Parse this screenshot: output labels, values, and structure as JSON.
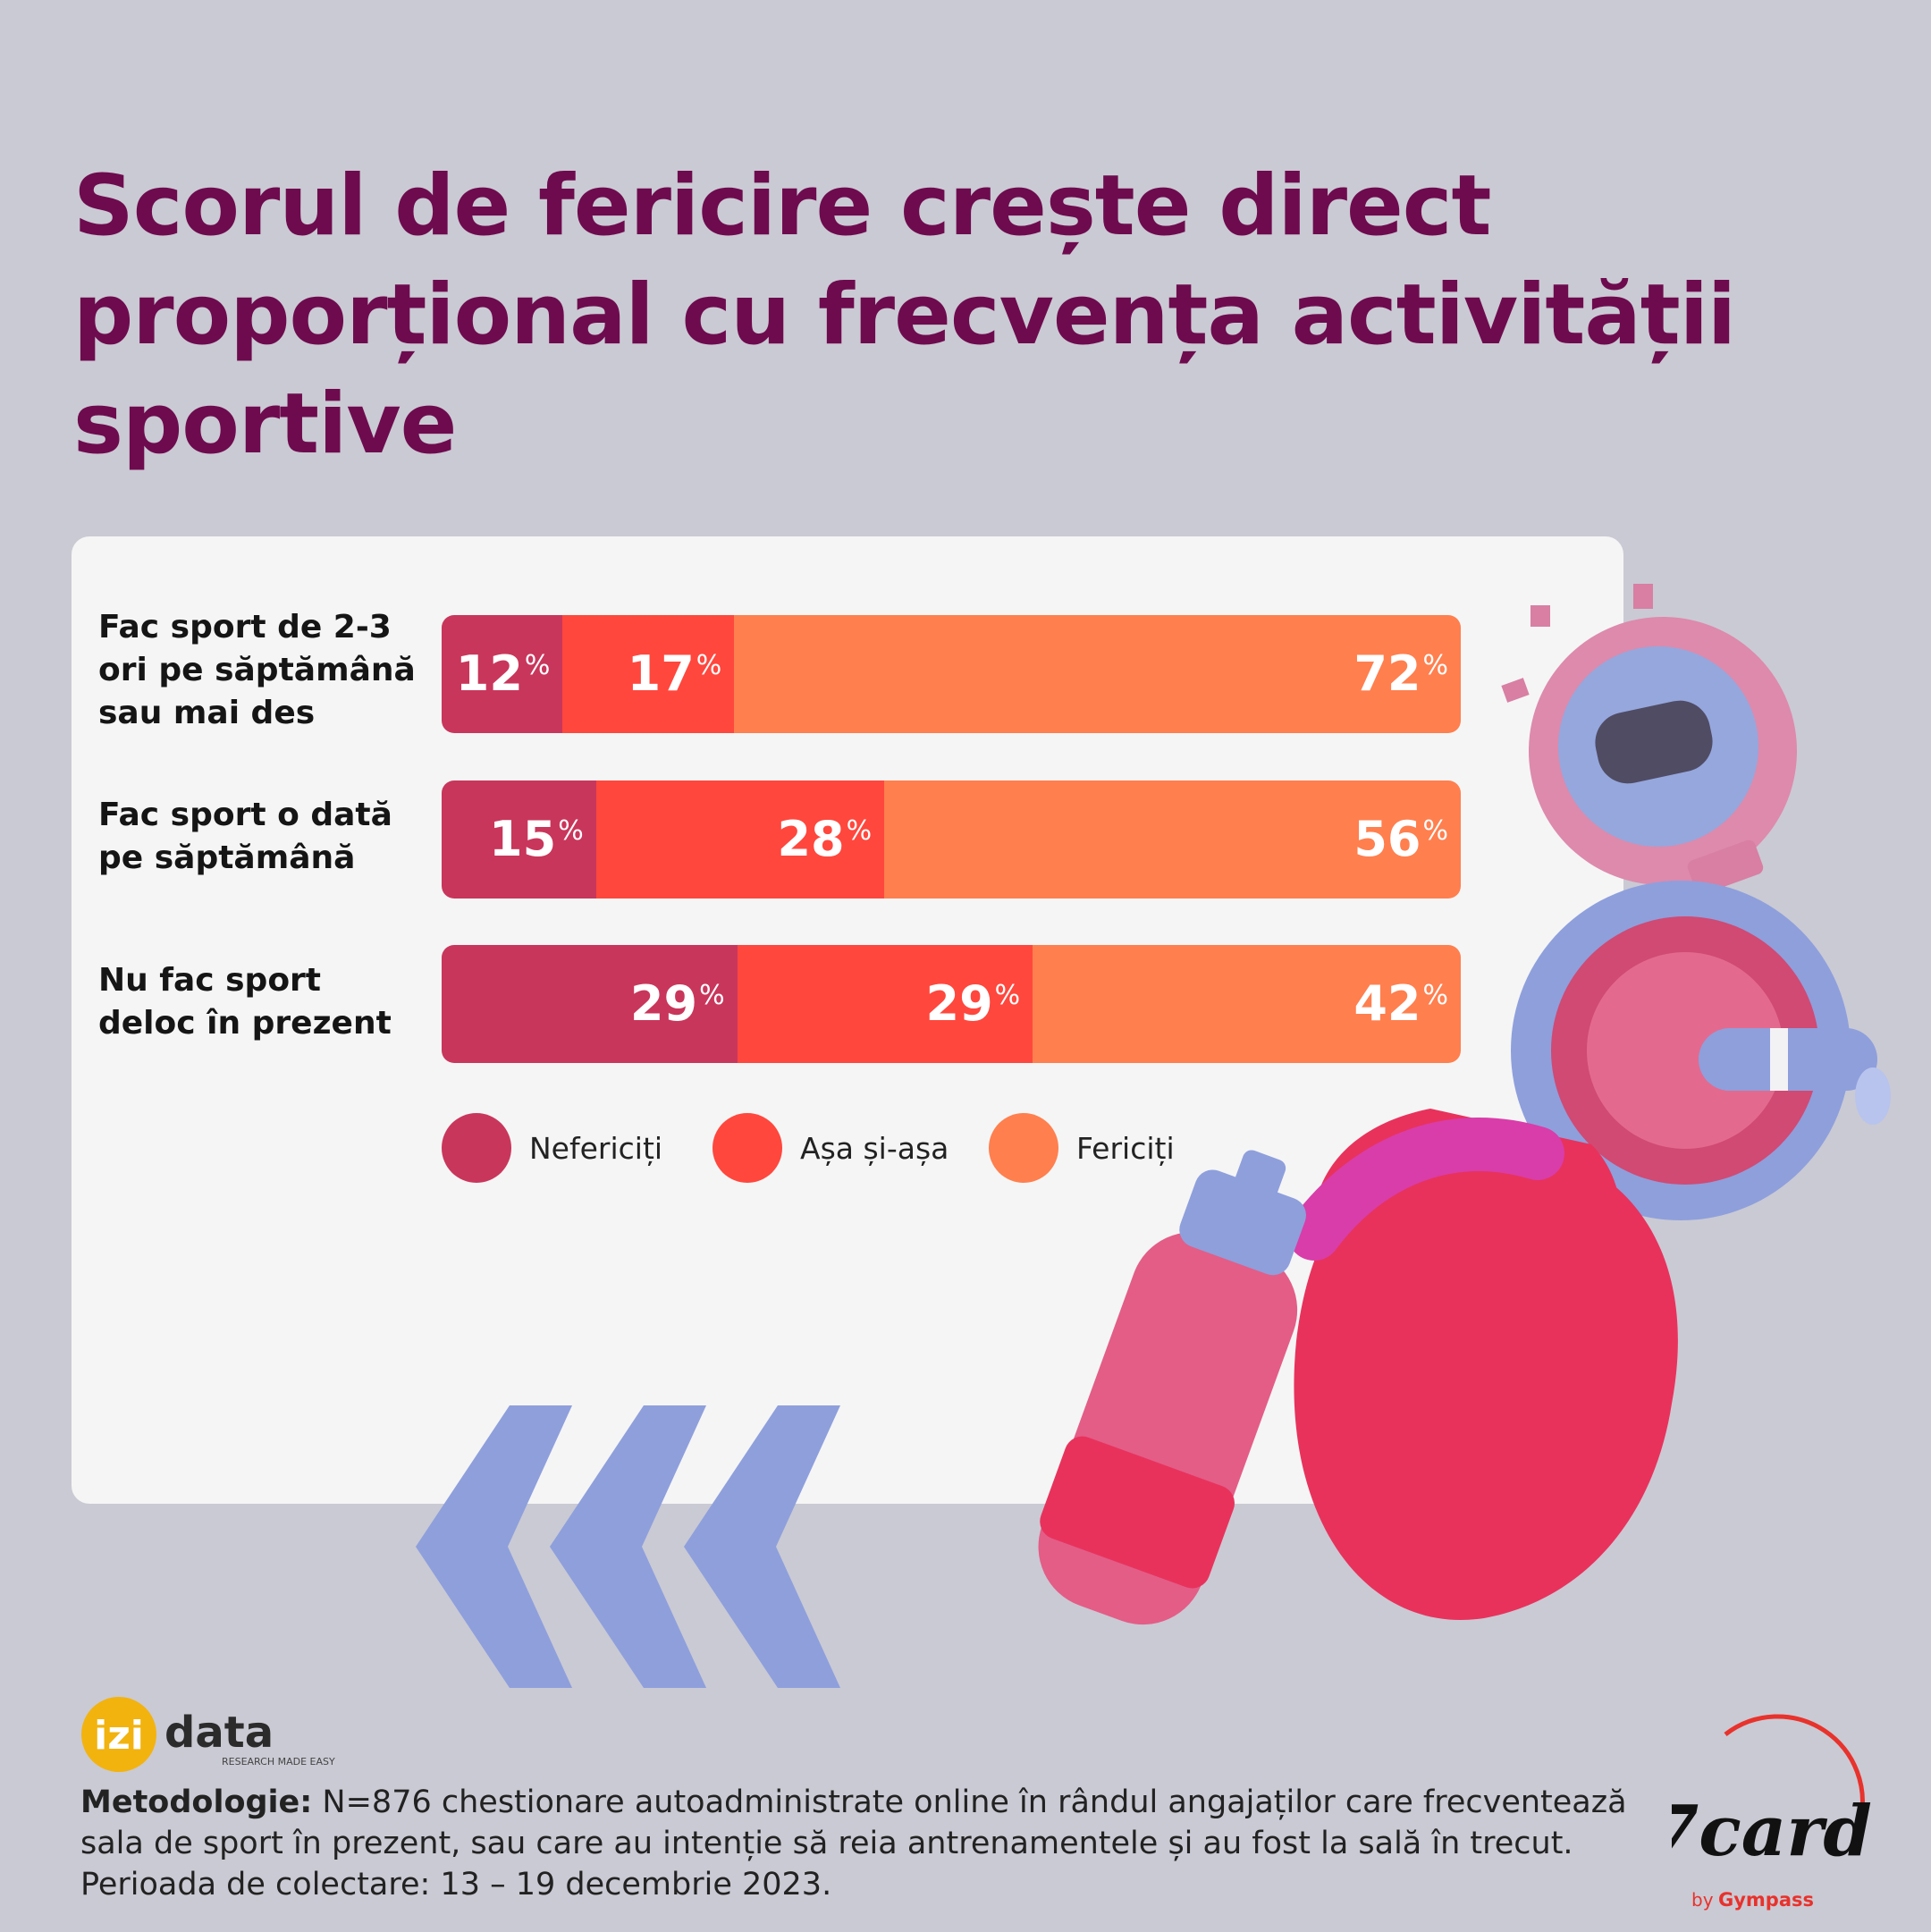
{
  "title_lines": [
    "Scorul de fericire crește direct",
    "proporțional cu frecvența activității",
    "sportive"
  ],
  "colors": {
    "nefericiti": "#c9365b",
    "asa_si_asa": "#ff473d",
    "fericiti": "#ff7f4e",
    "title": "#6e0b4e"
  },
  "chart_data": {
    "type": "bar",
    "stacked": true,
    "orientation": "horizontal",
    "percent_symbol": "%",
    "categories": [
      [
        "Fac sport de 2-3",
        "ori pe săptămână",
        "sau mai des"
      ],
      [
        "Fac sport o dată",
        "pe săptămână"
      ],
      [
        "Nu fac sport",
        "deloc în prezent"
      ]
    ],
    "series": [
      {
        "name": "Nefericiți",
        "values": [
          12,
          15,
          29
        ]
      },
      {
        "name": "Așa și-așa",
        "values": [
          17,
          28,
          29
        ]
      },
      {
        "name": "Fericiți",
        "values": [
          72,
          56,
          42
        ]
      }
    ],
    "legend": "bottom"
  },
  "logos": {
    "izi_brand": "izi",
    "izi_word": "data",
    "izi_tagline": "RESEARCH MADE EASY",
    "seven_card": "7card",
    "by": "by",
    "gympass": "Gympass"
  },
  "methodology": {
    "label": "Metodologie:",
    "line1": "N=876 chestionare autoadministrate online în rândul angajaților care frecventează",
    "line2": "sala de sport în prezent, sau care au intenție să reia antrenamentele și au fost la sală în trecut.",
    "line3": "Perioada de colectare: 13 – 19 decembrie 2023."
  }
}
